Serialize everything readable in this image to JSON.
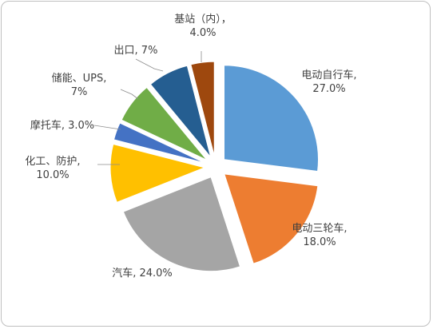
{
  "chart_data": {
    "type": "pie",
    "title": "",
    "exploded": true,
    "legend": "none",
    "slices": [
      {
        "name": "电动自行车",
        "value": 27.0,
        "label_lines": [
          "电动自行车,",
          "27.0%"
        ],
        "color": "#5b9bd5"
      },
      {
        "name": "电动三轮车",
        "value": 18.0,
        "label_lines": [
          "电动三轮车,",
          "18.0%"
        ],
        "color": "#ed7d31"
      },
      {
        "name": "汽车",
        "value": 24.0,
        "label_lines": [
          "汽车, 24.0%"
        ],
        "color": "#a5a5a5"
      },
      {
        "name": "化工、防护",
        "value": 10.0,
        "label_lines": [
          "化工、防护,",
          "10.0%"
        ],
        "color": "#ffc000"
      },
      {
        "name": "摩托车",
        "value": 3.0,
        "label_lines": [
          "摩托车, 3.0%"
        ],
        "color": "#4472c4"
      },
      {
        "name": "储能、UPS",
        "value": 7.0,
        "label_lines": [
          "储能、UPS,",
          "7%"
        ],
        "color": "#70ad47"
      },
      {
        "name": "出口",
        "value": 7.0,
        "label_lines": [
          "出口, 7%"
        ],
        "color": "#255e91"
      },
      {
        "name": "基站（内）",
        "value": 4.0,
        "label_lines": [
          "基站（内），",
          "4.0%"
        ],
        "color": "#9e480e"
      }
    ]
  }
}
